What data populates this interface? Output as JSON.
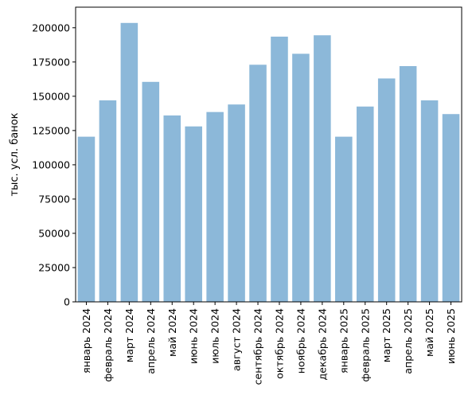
{
  "chart_data": {
    "type": "bar",
    "categories": [
      "январь 2024",
      "февраль 2024",
      "март 2024",
      "апрель 2024",
      "май 2024",
      "июнь 2024",
      "июль 2024",
      "август 2024",
      "сентябрь 2024",
      "октябрь 2024",
      "ноябрь 2024",
      "декабрь 2024",
      "январь 2025",
      "февраль 2025",
      "март 2025",
      "апрель 2025",
      "май 2025",
      "июнь 2025"
    ],
    "values": [
      120500,
      147000,
      203500,
      160500,
      136000,
      128000,
      138500,
      144000,
      173000,
      193500,
      181000,
      194500,
      120500,
      142500,
      163000,
      172000,
      147000,
      137000
    ],
    "title": "",
    "xlabel": "",
    "ylabel": "тыс. усл. банок",
    "ylim": [
      0,
      215000
    ],
    "yticks": [
      0,
      25000,
      50000,
      75000,
      100000,
      125000,
      150000,
      175000,
      200000
    ],
    "bar_color": "#8cb8d9",
    "grid": false,
    "legend": "none"
  }
}
